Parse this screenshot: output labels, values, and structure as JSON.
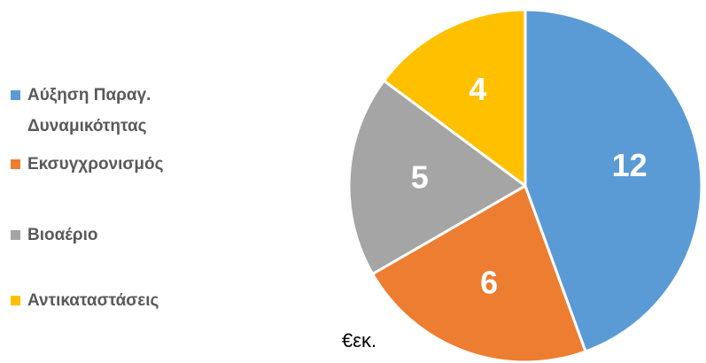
{
  "chart_data": {
    "type": "pie",
    "categories": [
      "Αύξηση Παραγ. Δυναμικότητας",
      "Εκσυγχρονισμός",
      "Βιοαέριο",
      "Αντικαταστάσεις"
    ],
    "values": [
      12,
      6,
      5,
      4
    ],
    "colors": [
      "#5b9bd5",
      "#ed7d31",
      "#a5a5a5",
      "#ffc000"
    ],
    "annotation": "€εκ.",
    "legend": "left"
  }
}
